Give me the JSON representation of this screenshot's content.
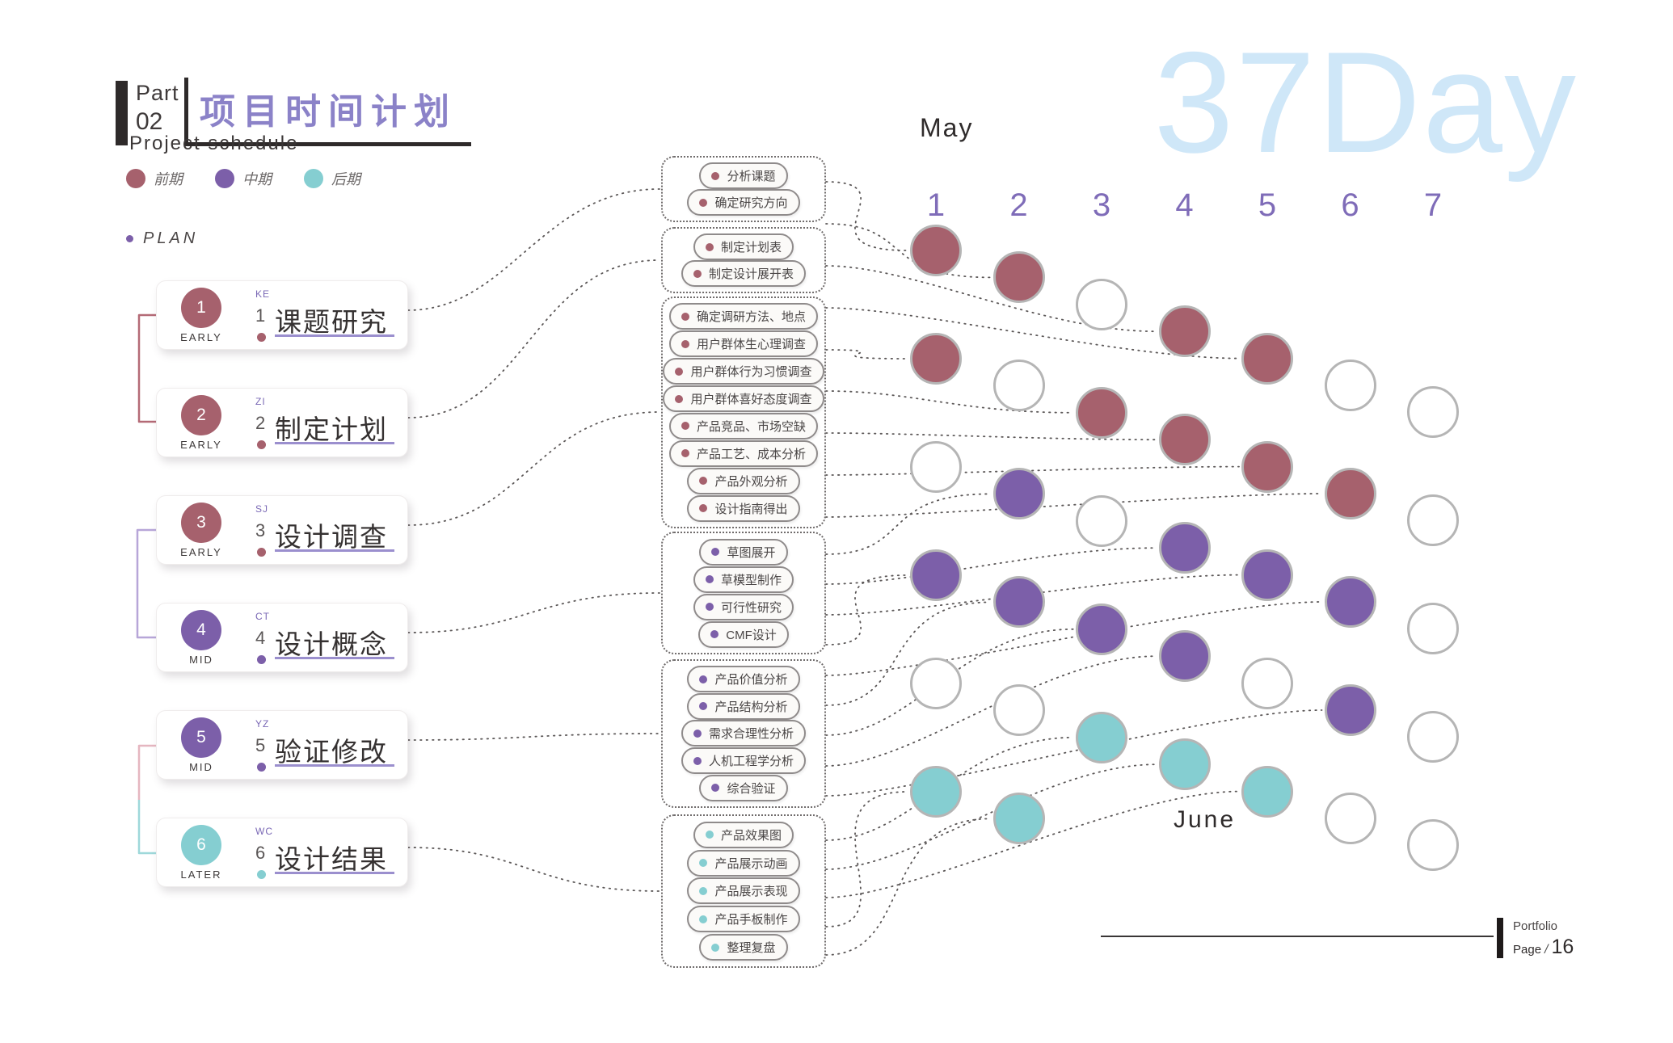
{
  "header": {
    "part_label": "Part",
    "part_number": "02",
    "title": "项目时间计划",
    "subtitle": "Project schedule"
  },
  "legend": [
    {
      "label": "前期",
      "key": "early"
    },
    {
      "label": "中期",
      "key": "mid"
    },
    {
      "label": "后期",
      "key": "late"
    }
  ],
  "plan_label": "PLAN",
  "colors": {
    "early": "#a6616d",
    "mid": "#7c5fa9",
    "late": "#85ced1",
    "title_purple": "#8b82c8",
    "day_purple": "#7f6cb8",
    "duration_blue": "#cfe7f8",
    "underline_purple": "#9b8fce",
    "empty_circle_border": "#b5b5b5"
  },
  "phases": [
    {
      "number": "1",
      "code": "KE",
      "title": "课题研究",
      "stage": "EARLY",
      "key": "early"
    },
    {
      "number": "2",
      "code": "ZI",
      "title": "制定计划",
      "stage": "EARLY",
      "key": "early"
    },
    {
      "number": "3",
      "code": "SJ",
      "title": "设计调查",
      "stage": "EARLY",
      "key": "early"
    },
    {
      "number": "4",
      "code": "CT",
      "title": "设计概念",
      "stage": "MID",
      "key": "mid"
    },
    {
      "number": "5",
      "code": "YZ",
      "title": "验证修改",
      "stage": "MID",
      "key": "mid"
    },
    {
      "number": "6",
      "code": "WC",
      "title": "设计结果",
      "stage": "LATER",
      "key": "late"
    }
  ],
  "task_groups": [
    {
      "phase": "1",
      "key": "early",
      "tasks": [
        "分析课题",
        "确定研究方向"
      ]
    },
    {
      "phase": "2",
      "key": "early",
      "tasks": [
        "制定计划表",
        "制定设计展开表"
      ]
    },
    {
      "phase": "3",
      "key": "early",
      "tasks": [
        "确定调研方法、地点",
        "用户群体生心理调查",
        "用户群体行为习惯调查",
        "用户群体喜好态度调查",
        "产品竞品、市场空缺",
        "产品工艺、成本分析",
        "产品外观分析",
        "设计指南得出"
      ]
    },
    {
      "phase": "4",
      "key": "mid",
      "tasks": [
        "草图展开",
        "草模型制作",
        "可行性研究",
        "CMF设计"
      ]
    },
    {
      "phase": "5",
      "key": "mid",
      "tasks": [
        "产品价值分析",
        "产品结构分析",
        "需求合理性分析",
        "人机工程学分析",
        "综合验证"
      ]
    },
    {
      "phase": "6",
      "key": "late",
      "tasks": [
        "产品效果图",
        "产品展示动画",
        "产品展示表现",
        "产品手板制作",
        "整理复盘"
      ]
    }
  ],
  "calendar": {
    "month_start": "May",
    "month_end": "June",
    "duration_label": "37Day",
    "day_headers": [
      "1",
      "2",
      "3",
      "4",
      "5",
      "6",
      "7"
    ],
    "columns": [
      [
        "early",
        "early",
        "none",
        "mid",
        "none",
        "late"
      ],
      [
        "early",
        "none",
        "mid",
        "mid",
        "none",
        "late"
      ],
      [
        "none",
        "early",
        "none",
        "mid",
        "late"
      ],
      [
        "early",
        "early",
        "mid",
        "mid",
        "late"
      ],
      [
        "early",
        "early",
        "mid",
        "none",
        "late"
      ],
      [
        "none",
        "early",
        "mid",
        "mid",
        "none"
      ],
      [
        "none",
        "none",
        "none",
        "none",
        "none"
      ]
    ]
  },
  "footer": {
    "portfolio": "Portfolio",
    "page_label": "Page",
    "page_separator": "/",
    "page_number": "16"
  }
}
